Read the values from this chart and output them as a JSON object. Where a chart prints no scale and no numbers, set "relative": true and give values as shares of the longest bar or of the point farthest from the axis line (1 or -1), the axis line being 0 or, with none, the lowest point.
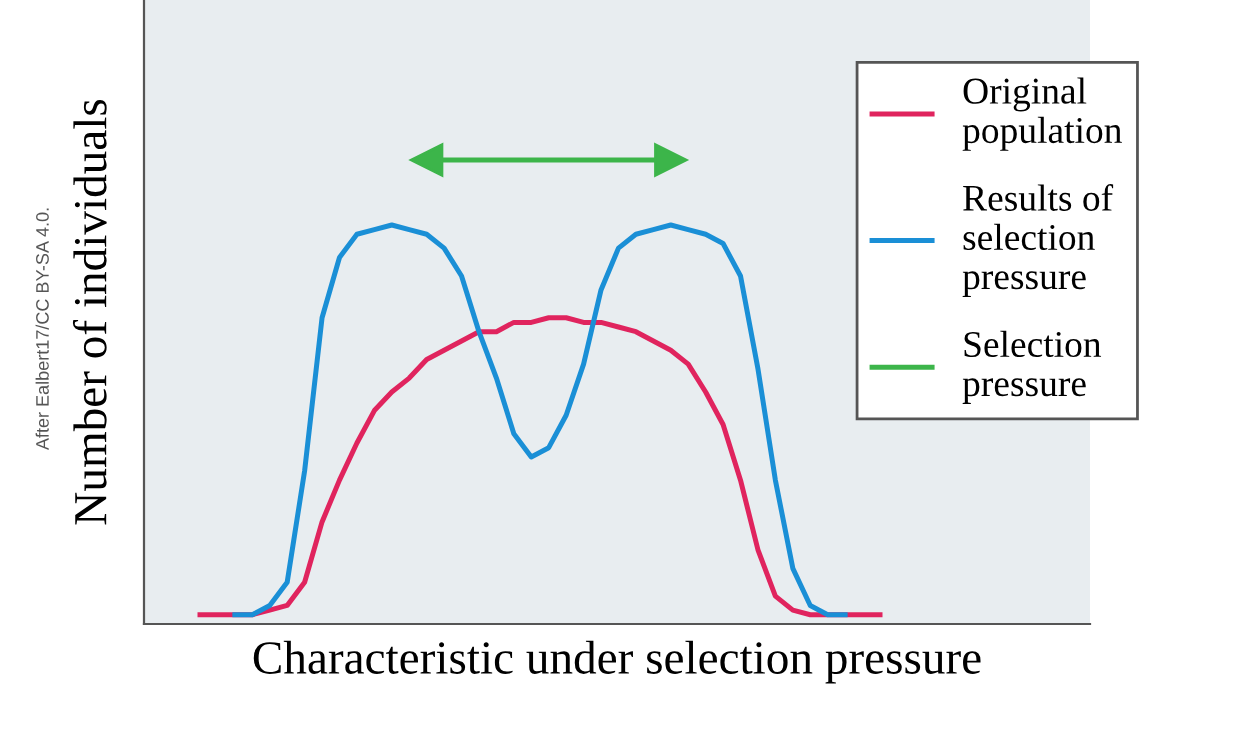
{
  "chart_data": {
    "type": "line",
    "relative": true,
    "xlabel": "Characteristic under selection pressure",
    "ylabel": "Number of individuals",
    "annotations": [
      "After Ealbert17/CC BY-SA 4.0."
    ],
    "categories": [
      null,
      null,
      null,
      null,
      null,
      null,
      null,
      null,
      null,
      null,
      null,
      null,
      null,
      null,
      null,
      null,
      null,
      null,
      null,
      null,
      null,
      null,
      null,
      null,
      null,
      null,
      null,
      null,
      null,
      null,
      null,
      null,
      null,
      null,
      null,
      null,
      null,
      null,
      null,
      null
    ],
    "series": [
      {
        "name": "Original population",
        "color": "#e0245e",
        "values": [
          0.02,
          0.02,
          0.02,
          0.02,
          0.03,
          0.04,
          0.09,
          0.22,
          0.31,
          0.39,
          0.46,
          0.5,
          0.53,
          0.57,
          0.59,
          0.61,
          0.63,
          0.63,
          0.65,
          0.65,
          0.66,
          0.66,
          0.65,
          0.65,
          0.64,
          0.63,
          0.61,
          0.59,
          0.56,
          0.5,
          0.43,
          0.31,
          0.16,
          0.06,
          0.03,
          0.02,
          0.02,
          0.02,
          0.02,
          0.02
        ]
      },
      {
        "name": "Results of selection pressure",
        "color": "#1a8fd6",
        "values": [
          null,
          null,
          0.02,
          0.02,
          0.04,
          0.09,
          0.33,
          0.66,
          0.79,
          0.84,
          0.85,
          0.86,
          0.85,
          0.84,
          0.81,
          0.75,
          0.63,
          0.53,
          0.41,
          0.36,
          0.38,
          0.45,
          0.56,
          0.72,
          0.81,
          0.84,
          0.85,
          0.86,
          0.85,
          0.84,
          0.82,
          0.75,
          0.55,
          0.31,
          0.12,
          0.04,
          0.02,
          0.02,
          null,
          null
        ]
      },
      {
        "name": "Selection pressure",
        "color": "#3cb54a",
        "values": [
          null,
          null,
          null,
          null,
          null,
          null,
          null,
          null,
          null,
          null,
          null,
          null,
          null,
          1,
          1,
          1,
          1,
          1,
          1,
          1,
          1,
          1,
          1,
          1,
          1,
          1,
          1,
          1,
          null,
          null,
          null,
          null,
          null,
          null,
          null,
          null,
          null,
          null,
          null,
          null
        ]
      }
    ],
    "legend": "top right"
  }
}
